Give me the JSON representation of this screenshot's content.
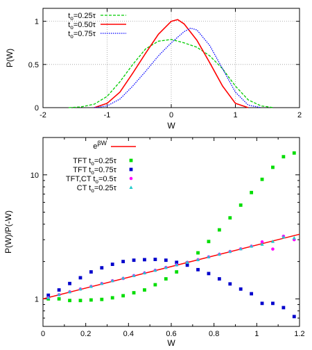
{
  "chart_data": [
    {
      "type": "line",
      "xlabel": "W",
      "ylabel": "P(W)",
      "xlim": [
        -2,
        2
      ],
      "ylim": [
        0,
        1.15
      ],
      "xticks": [
        "-2",
        "-1",
        "0",
        "1",
        "2"
      ],
      "yticks": [
        "0",
        "0.5",
        "1"
      ],
      "grid": true,
      "legend_position": "top-left",
      "series": [
        {
          "name": "t",
          "legend_sub": "o",
          "legend_rest": "=0.25τ",
          "color": "#00cc00",
          "style": "dashed",
          "x": [
            -1.6,
            -1.4,
            -1.2,
            -1.0,
            -0.8,
            -0.6,
            -0.4,
            -0.2,
            0.0,
            0.2,
            0.4,
            0.6,
            0.8,
            1.0,
            1.2,
            1.4,
            1.6
          ],
          "y": [
            0.0,
            0.01,
            0.04,
            0.13,
            0.3,
            0.5,
            0.68,
            0.77,
            0.79,
            0.75,
            0.7,
            0.6,
            0.45,
            0.25,
            0.09,
            0.02,
            0.0
          ]
        },
        {
          "name": "t",
          "legend_sub": "o",
          "legend_rest": "=0.50τ",
          "color": "#ff0000",
          "style": "solid",
          "x": [
            -1.2,
            -1.0,
            -0.8,
            -0.6,
            -0.4,
            -0.2,
            0.0,
            0.1,
            0.2,
            0.4,
            0.6,
            0.8,
            1.0,
            1.2
          ],
          "y": [
            0.0,
            0.05,
            0.18,
            0.4,
            0.63,
            0.85,
            1.0,
            1.02,
            0.97,
            0.78,
            0.52,
            0.25,
            0.05,
            0.0
          ]
        },
        {
          "name": "t",
          "legend_sub": "o",
          "legend_rest": "=0.75τ",
          "color": "#0000ff",
          "style": "dotted",
          "x": [
            -1.2,
            -1.0,
            -0.8,
            -0.6,
            -0.4,
            -0.2,
            0.0,
            0.2,
            0.3,
            0.4,
            0.6,
            0.8,
            1.0,
            1.2,
            1.4
          ],
          "y": [
            0.0,
            0.02,
            0.1,
            0.25,
            0.42,
            0.6,
            0.75,
            0.88,
            0.92,
            0.9,
            0.72,
            0.45,
            0.18,
            0.03,
            0.0
          ]
        }
      ]
    },
    {
      "type": "scatter",
      "xlabel": "W",
      "ylabel": "P(W)/P(-W)",
      "xlim": [
        0,
        1.2
      ],
      "ylim": [
        0.6,
        20
      ],
      "yscale": "log",
      "xticks": [
        "0",
        "0.2",
        "0.4",
        "0.6",
        "0.8",
        "1",
        "1.2"
      ],
      "yticks": [
        "1",
        "10"
      ],
      "grid": false,
      "legend_position": "top-left",
      "line": {
        "label_base": "e",
        "label_sup": "βW",
        "color": "#ff0000",
        "x": [
          0,
          1.2
        ],
        "y": [
          1.0,
          3.32
        ]
      },
      "series": [
        {
          "name": "TFT t",
          "legend_sub": "o",
          "legend_rest": "=0.25τ",
          "color": "#00dd00",
          "marker": "square",
          "x": [
            0.025,
            0.075,
            0.125,
            0.175,
            0.225,
            0.275,
            0.325,
            0.375,
            0.425,
            0.475,
            0.525,
            0.575,
            0.625,
            0.675,
            0.725,
            0.775,
            0.825,
            0.875,
            0.925,
            0.975,
            1.025,
            1.075,
            1.125,
            1.175
          ],
          "y": [
            1.0,
            1.0,
            0.97,
            0.97,
            0.98,
            0.99,
            1.02,
            1.06,
            1.12,
            1.18,
            1.3,
            1.45,
            1.65,
            1.95,
            2.35,
            2.9,
            3.6,
            4.5,
            5.7,
            7.2,
            9.2,
            11.5,
            14.0,
            15.0
          ]
        },
        {
          "name": "TFT t",
          "legend_sub": "o",
          "legend_rest": "=0.75τ",
          "color": "#0000cc",
          "marker": "square",
          "x": [
            0.025,
            0.075,
            0.125,
            0.175,
            0.225,
            0.275,
            0.325,
            0.375,
            0.425,
            0.475,
            0.525,
            0.575,
            0.625,
            0.675,
            0.725,
            0.775,
            0.825,
            0.875,
            0.925,
            0.975,
            1.025,
            1.075,
            1.125,
            1.175
          ],
          "y": [
            1.07,
            1.18,
            1.33,
            1.48,
            1.65,
            1.78,
            1.9,
            2.0,
            2.05,
            2.07,
            2.08,
            2.05,
            1.97,
            1.87,
            1.72,
            1.6,
            1.45,
            1.32,
            1.2,
            1.1,
            0.92,
            0.92,
            0.85,
            0.72
          ]
        },
        {
          "name": "TFT,CT t",
          "legend_sub": "o",
          "legend_rest": "=0.5τ",
          "color": "#ff00ff",
          "marker": "circle",
          "x": [
            0.025,
            0.075,
            0.125,
            0.175,
            0.225,
            0.275,
            0.325,
            0.375,
            0.425,
            0.475,
            0.525,
            0.575,
            0.625,
            0.675,
            0.725,
            0.775,
            0.825,
            0.875,
            0.925,
            0.975,
            1.025,
            1.075,
            1.125,
            1.175
          ],
          "y": [
            1.02,
            1.08,
            1.14,
            1.2,
            1.26,
            1.33,
            1.4,
            1.46,
            1.54,
            1.62,
            1.7,
            1.79,
            1.88,
            1.97,
            2.07,
            2.18,
            2.29,
            2.41,
            2.53,
            2.66,
            2.88,
            2.52,
            3.2,
            3.0
          ]
        },
        {
          "name": "CT t",
          "legend_sub": "o",
          "legend_rest": "=0.25τ",
          "color": "#22cccc",
          "marker": "triangle",
          "x": [
            0.025,
            0.075,
            0.125,
            0.175,
            0.225,
            0.275,
            0.325,
            0.375,
            0.425,
            0.475,
            0.525,
            0.575,
            0.625,
            0.675,
            0.725,
            0.775,
            0.825,
            0.875,
            0.925,
            0.975,
            1.025,
            1.075,
            1.125,
            1.175
          ],
          "y": [
            1.02,
            1.08,
            1.14,
            1.2,
            1.26,
            1.33,
            1.4,
            1.47,
            1.54,
            1.62,
            1.7,
            1.79,
            1.88,
            1.97,
            2.07,
            2.18,
            2.29,
            2.41,
            2.53,
            2.66,
            2.75,
            2.9,
            3.15,
            3.1
          ]
        }
      ]
    }
  ]
}
